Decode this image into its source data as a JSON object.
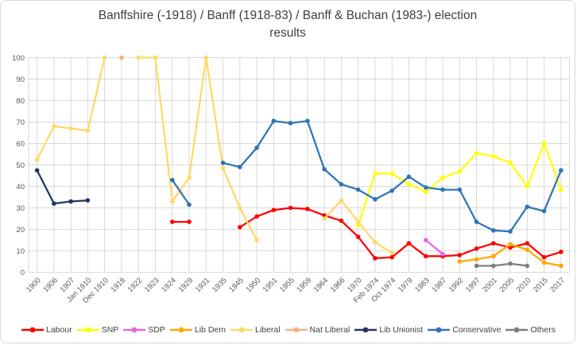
{
  "title_lines": {
    "line1": "Banffshire (-1918) / Banff (1918-83) / Banff & Buchan (1983-) election",
    "line2": "results"
  },
  "chart_data": {
    "type": "line",
    "title": "Banffshire (-1918) / Banff (1918-83) / Banff & Buchan (1983-) election results",
    "xlabel": "",
    "ylabel": "",
    "ylim": [
      0,
      100
    ],
    "y_tick_step": 10,
    "y_tick_labels": [
      "0",
      "10",
      "20",
      "30",
      "40",
      "50",
      "60",
      "70",
      "80",
      "90",
      "100"
    ],
    "grid": true,
    "legend_position": "bottom",
    "categories": [
      "1900",
      "1906",
      "1907",
      "Jan 1910",
      "Dec 1910",
      "1918",
      "1922",
      "1923",
      "1924",
      "1929",
      "1931",
      "1935",
      "1945",
      "1950",
      "1951",
      "1955",
      "1959",
      "1964",
      "1966",
      "1970",
      "Feb 1974",
      "Oct 1974",
      "1979",
      "1983",
      "1987",
      "1992",
      "1997",
      "2001",
      "2005",
      "2010",
      "2015",
      "2017"
    ],
    "series": [
      {
        "name": "Labour",
        "color": "#ff0000",
        "values": [
          null,
          null,
          null,
          null,
          null,
          null,
          null,
          null,
          23.5,
          23.5,
          null,
          null,
          21,
          26,
          29,
          30,
          29.5,
          26.5,
          24,
          16.5,
          6.5,
          7,
          13.5,
          7.5,
          7.5,
          8,
          11,
          13.5,
          11.5,
          13.5,
          7,
          9.5
        ]
      },
      {
        "name": "SNP",
        "color": "#ffff00",
        "values": [
          null,
          null,
          null,
          null,
          null,
          null,
          null,
          null,
          null,
          null,
          null,
          null,
          null,
          null,
          null,
          null,
          null,
          null,
          null,
          22,
          46,
          46,
          41,
          37.5,
          44,
          47,
          55.5,
          54,
          51,
          40,
          60,
          38.5
        ]
      },
      {
        "name": "SDP",
        "color": "#ee63e0",
        "values": [
          null,
          null,
          null,
          null,
          null,
          null,
          null,
          null,
          null,
          null,
          null,
          null,
          null,
          null,
          null,
          null,
          null,
          null,
          null,
          null,
          null,
          null,
          null,
          15,
          8.5,
          null,
          null,
          null,
          null,
          null,
          null,
          null
        ]
      },
      {
        "name": "Lib Dem",
        "color": "#ffa600",
        "values": [
          null,
          null,
          null,
          null,
          null,
          null,
          null,
          null,
          null,
          null,
          null,
          null,
          null,
          null,
          null,
          null,
          null,
          null,
          null,
          null,
          null,
          null,
          null,
          null,
          null,
          5,
          6,
          7.5,
          13,
          10.5,
          4.5,
          3
        ]
      },
      {
        "name": "Liberal",
        "color": "#ffd966",
        "values": [
          52.5,
          68,
          67,
          66,
          100,
          null,
          100,
          100,
          33,
          44,
          100,
          48.5,
          30,
          15,
          null,
          null,
          null,
          25,
          33.5,
          23.5,
          14,
          9,
          null,
          null,
          null,
          null,
          null,
          null,
          null,
          null,
          null,
          null
        ]
      },
      {
        "name": "Nat Liberal",
        "color": "#f4b183",
        "values": [
          null,
          null,
          null,
          null,
          null,
          100,
          null,
          null,
          null,
          null,
          null,
          null,
          null,
          null,
          null,
          null,
          null,
          null,
          null,
          null,
          null,
          null,
          null,
          null,
          null,
          null,
          null,
          null,
          null,
          null,
          null,
          null
        ]
      },
      {
        "name": "Lib Unionist",
        "color": "#203864",
        "values": [
          47.5,
          32,
          33,
          33.5,
          null,
          null,
          null,
          null,
          null,
          null,
          null,
          null,
          null,
          null,
          null,
          null,
          null,
          null,
          null,
          null,
          null,
          null,
          null,
          null,
          null,
          null,
          null,
          null,
          null,
          null,
          null,
          null
        ]
      },
      {
        "name": "Conservative",
        "color": "#2e75b6",
        "values": [
          null,
          null,
          null,
          null,
          null,
          null,
          null,
          null,
          43,
          31.5,
          null,
          51,
          49,
          58,
          70.5,
          69.5,
          70.5,
          48,
          41,
          38.5,
          34,
          38,
          44.5,
          39.5,
          38.5,
          38.5,
          23.5,
          19.5,
          19,
          30.5,
          28.5,
          47.5
        ]
      },
      {
        "name": "Others",
        "color": "#7f7f7f",
        "values": [
          null,
          null,
          null,
          null,
          null,
          null,
          null,
          null,
          null,
          null,
          null,
          null,
          null,
          null,
          null,
          null,
          null,
          null,
          null,
          null,
          null,
          null,
          null,
          null,
          null,
          null,
          3,
          3,
          4,
          3,
          null,
          null
        ]
      }
    ],
    "style": {
      "gridline_color": "#d9d9d9",
      "axis_label_color": "#595959",
      "title_color": "#3f3f3f",
      "line_width": 2.25,
      "marker_radius": 2.8
    }
  }
}
